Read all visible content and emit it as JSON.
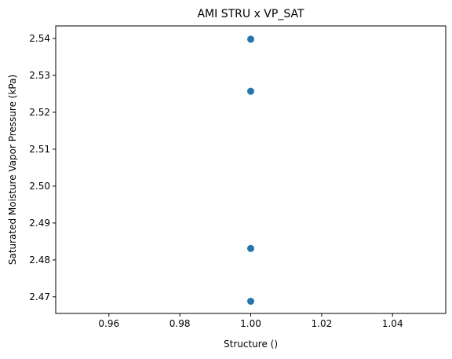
{
  "chart_data": {
    "type": "scatter",
    "title": "AMI STRU x VP_SAT",
    "xlabel": "Structure ()",
    "ylabel": "Saturated Moisture Vapor Pressure (kPa)",
    "xlim": [
      0.945,
      1.055
    ],
    "ylim": [
      2.4655,
      2.5434
    ],
    "grid": false,
    "x_ticks": [
      0.96,
      0.98,
      1.0,
      1.02,
      1.04
    ],
    "x_tick_labels": [
      "0.96",
      "0.98",
      "1.00",
      "1.02",
      "1.04"
    ],
    "y_ticks": [
      2.47,
      2.48,
      2.49,
      2.5,
      2.51,
      2.52,
      2.53,
      2.54
    ],
    "y_tick_labels": [
      "2.47",
      "2.48",
      "2.49",
      "2.50",
      "2.51",
      "2.52",
      "2.53",
      "2.54"
    ],
    "series": [
      {
        "color": "#1f77b4",
        "points": [
          {
            "x": 1.0,
            "y": 2.5398
          },
          {
            "x": 1.0,
            "y": 2.5257
          },
          {
            "x": 1.0,
            "y": 2.4831
          },
          {
            "x": 1.0,
            "y": 2.4688
          }
        ]
      }
    ]
  }
}
